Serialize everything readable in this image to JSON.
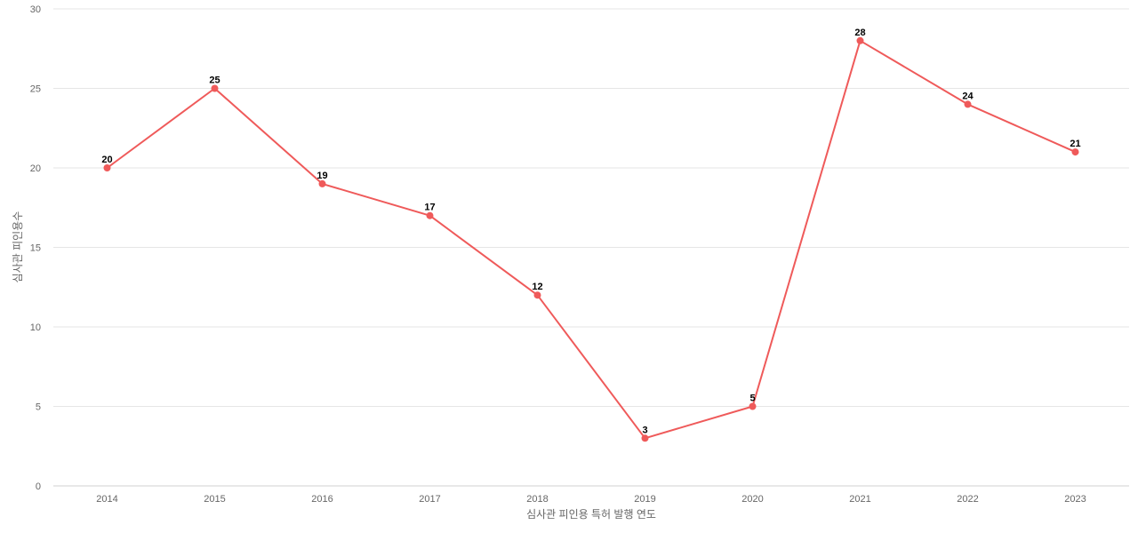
{
  "chart_data": {
    "type": "line",
    "categories": [
      "2014",
      "2015",
      "2016",
      "2017",
      "2018",
      "2019",
      "2020",
      "2021",
      "2022",
      "2023"
    ],
    "series": [
      {
        "values": [
          20,
          25,
          19,
          17,
          12,
          3,
          5,
          28,
          24,
          21
        ]
      }
    ],
    "xlabel": "심사관 피인용 특허 발행 연도",
    "ylabel": "심사관 피인용수",
    "ylim": [
      0,
      30
    ],
    "yticks": [
      "0",
      "5",
      "10",
      "15",
      "20",
      "25",
      "30"
    ],
    "grid": true,
    "legend": "none",
    "colors": {
      "line": "#ef5a5a",
      "grid": "#e6e6e6",
      "tick": "#666666",
      "label": "#000000"
    }
  }
}
